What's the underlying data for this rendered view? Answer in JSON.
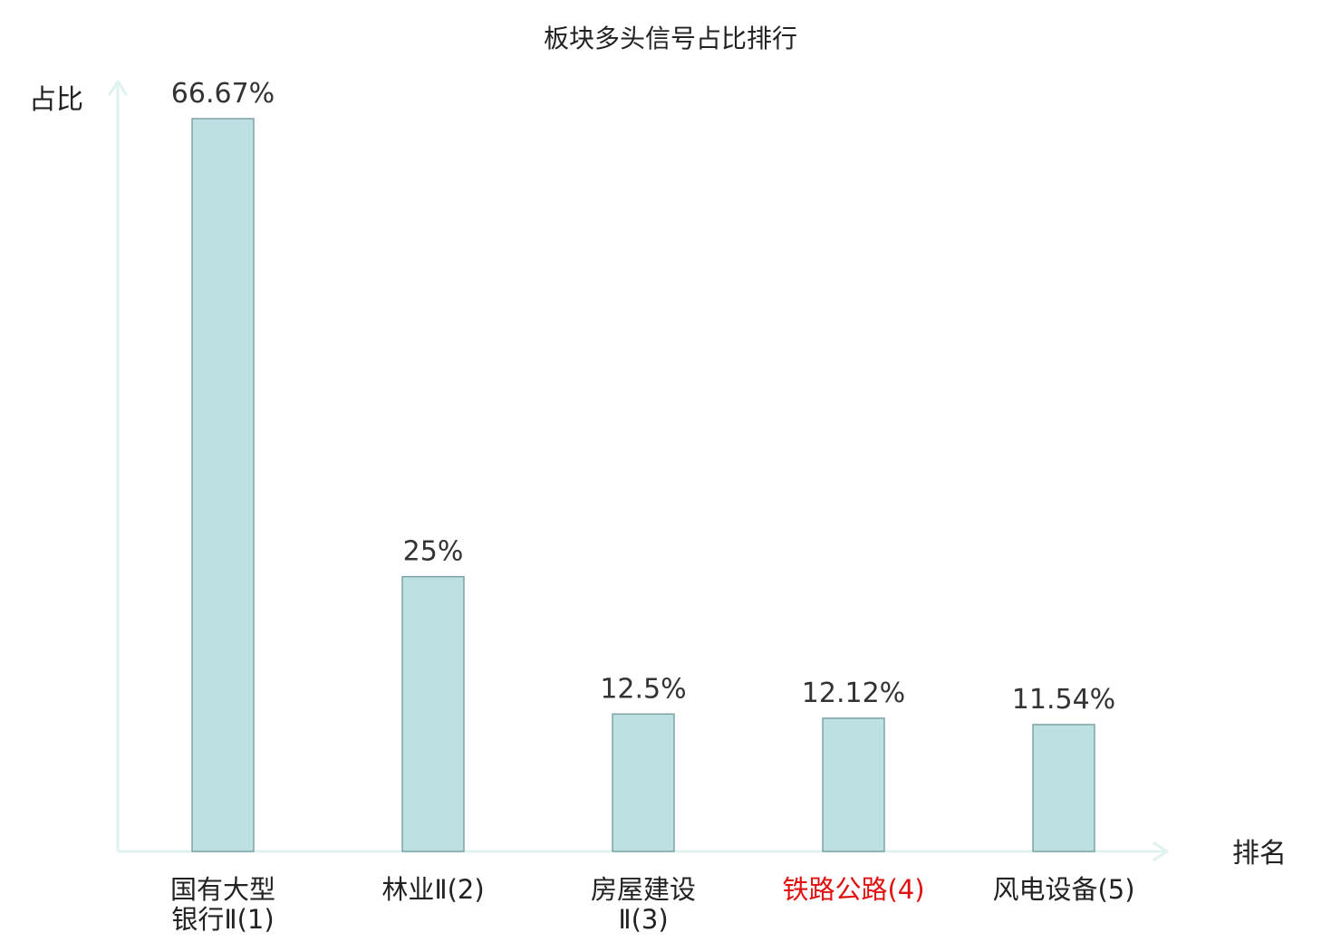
{
  "chart_data": {
    "type": "bar",
    "title": "板块多头信号占比排行",
    "xlabel": "排名",
    "ylabel": "占比",
    "categories": [
      [
        "国有大型",
        "银行Ⅱ(1)"
      ],
      [
        "林业Ⅱ(2)"
      ],
      [
        "房屋建设",
        "Ⅱ(3)"
      ],
      [
        "铁路公路(4)"
      ],
      [
        "风电设备(5)"
      ]
    ],
    "values": [
      66.67,
      25,
      12.5,
      12.12,
      11.54
    ],
    "value_labels": [
      "66.67%",
      "25%",
      "12.5%",
      "12.12%",
      "11.54%"
    ],
    "highlight_index": 3,
    "ylim": [
      0,
      66.67
    ],
    "grid": false
  },
  "colors": {
    "bar_fill": "#bde0e2",
    "bar_stroke": "#7fa3a5",
    "axis": "#e0f2ef",
    "category_text": "#222222",
    "highlight_text": "#e01010",
    "value_text": "#333333"
  }
}
